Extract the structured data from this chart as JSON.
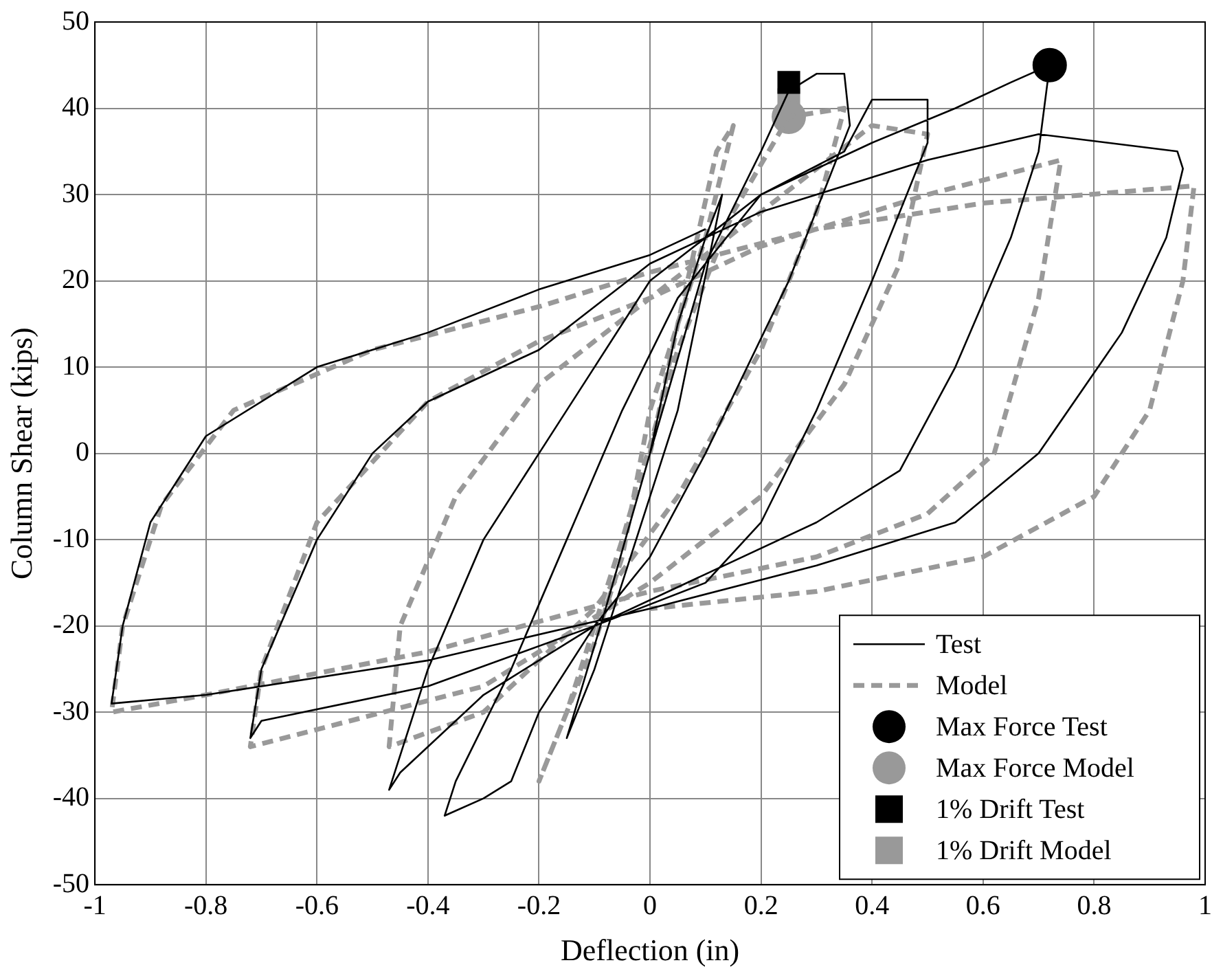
{
  "chart_data": {
    "type": "line",
    "xlabel": "Deflection (in)",
    "ylabel": "Column Shear (kips)",
    "xlim": [
      -1,
      1
    ],
    "xticks": [
      -1,
      -0.8,
      -0.6,
      -0.4,
      -0.2,
      0,
      0.2,
      0.4,
      0.6,
      0.8,
      1
    ],
    "ylim": [
      -50,
      50
    ],
    "yticks": [
      -50,
      -40,
      -30,
      -20,
      -10,
      0,
      10,
      20,
      30,
      40,
      50
    ],
    "grid": true,
    "legend": "bottom right",
    "series": [
      {
        "name": "Test",
        "type": "line",
        "line_style": "solid",
        "color": "#000000",
        "x": [
          0,
          0.05,
          0.1,
          0.13,
          0.05,
          -0.05,
          -0.1,
          -0.15,
          -0.08,
          0,
          0.1,
          0.2,
          0.25,
          0.3,
          0.35,
          0.36,
          0.25,
          0.1,
          0,
          -0.1,
          -0.2,
          -0.25,
          -0.3,
          -0.37,
          -0.35,
          -0.25,
          -0.15,
          -0.05,
          0.05,
          0.2,
          0.35,
          0.4,
          0.5,
          0.5,
          0.4,
          0.3,
          0.2,
          0.1,
          -0.1,
          -0.3,
          -0.45,
          -0.47,
          -0.4,
          -0.3,
          -0.2,
          -0.1,
          0,
          0.2,
          0.4,
          0.55,
          0.65,
          0.72,
          0.7,
          0.65,
          0.55,
          0.45,
          0.3,
          0.1,
          -0.1,
          -0.4,
          -0.7,
          -0.72,
          -0.7,
          -0.6,
          -0.5,
          -0.4,
          -0.2,
          0,
          0.2,
          0.5,
          0.7,
          0.95,
          0.96,
          0.93,
          0.85,
          0.7,
          0.55,
          0.3,
          0,
          -0.4,
          -0.8,
          -0.97,
          -0.95,
          -0.9,
          -0.8,
          -0.6,
          -0.4,
          -0.2,
          0,
          0.1
        ],
        "values": [
          0,
          15,
          25,
          30,
          5,
          -15,
          -25,
          -33,
          -18,
          0,
          22,
          35,
          42,
          44,
          44,
          38,
          20,
          0,
          -12,
          -20,
          -30,
          -38,
          -40,
          -42,
          -38,
          -25,
          -10,
          5,
          18,
          30,
          35,
          41,
          41,
          36,
          20,
          5,
          -8,
          -15,
          -20,
          -28,
          -37,
          -39,
          -25,
          -10,
          0,
          10,
          20,
          30,
          36,
          40,
          43,
          45,
          35,
          25,
          10,
          -2,
          -8,
          -14,
          -20,
          -27,
          -31,
          -33,
          -25,
          -10,
          0,
          6,
          12,
          22,
          28,
          34,
          37,
          35,
          33,
          25,
          14,
          0,
          -8,
          -13,
          -18,
          -24,
          -28,
          -29,
          -20,
          -8,
          2,
          10,
          14,
          19,
          23,
          26
        ]
      },
      {
        "name": "Model",
        "type": "line",
        "line_style": "dashed",
        "color": "#999999",
        "x": [
          0,
          0.05,
          0.12,
          0.15,
          0.1,
          0,
          -0.05,
          -0.1,
          -0.15,
          -0.2,
          -0.15,
          -0.05,
          0.05,
          0.15,
          0.25,
          0.35,
          0.3,
          0.2,
          0.05,
          -0.1,
          -0.3,
          -0.47,
          -0.45,
          -0.35,
          -0.2,
          0,
          0.2,
          0.4,
          0.5,
          0.45,
          0.35,
          0.2,
          0,
          -0.3,
          -0.6,
          -0.72,
          -0.7,
          -0.6,
          -0.4,
          -0.2,
          0,
          0.2,
          0.5,
          0.74,
          0.7,
          0.62,
          0.5,
          0.3,
          0,
          -0.4,
          -0.8,
          -0.97,
          -0.95,
          -0.88,
          -0.75,
          -0.5,
          -0.2,
          0,
          0.3,
          0.6,
          0.98,
          0.96,
          0.9,
          0.8,
          0.6,
          0.3,
          0
        ],
        "values": [
          0,
          15,
          35,
          38,
          25,
          5,
          -12,
          -22,
          -30,
          -38,
          -30,
          -10,
          12,
          28,
          39,
          40,
          28,
          12,
          -5,
          -18,
          -30,
          -34,
          -20,
          -5,
          8,
          18,
          28,
          38,
          37,
          22,
          8,
          -5,
          -15,
          -27,
          -32,
          -34,
          -25,
          -8,
          6,
          13,
          18,
          24,
          30,
          34,
          18,
          0,
          -7,
          -12,
          -16,
          -23,
          -28,
          -30,
          -20,
          -6,
          5,
          12,
          17,
          21,
          26,
          29,
          31,
          20,
          5,
          -5,
          -12,
          -16,
          -18
        ]
      },
      {
        "name": "Max Force Test",
        "type": "scatter",
        "marker": "circle",
        "color": "#000000",
        "x": [
          0.72
        ],
        "values": [
          45
        ]
      },
      {
        "name": "Max Force Model",
        "type": "scatter",
        "marker": "circle",
        "color": "#999999",
        "x": [
          0.25
        ],
        "values": [
          39
        ]
      },
      {
        "name": "1% Drift Test",
        "type": "scatter",
        "marker": "square",
        "color": "#000000",
        "x": [
          0.25
        ],
        "values": [
          43
        ]
      },
      {
        "name": "1% Drift Model",
        "type": "scatter",
        "marker": "square",
        "color": "#999999",
        "x": [
          0.25
        ],
        "values": [
          41
        ]
      }
    ]
  }
}
